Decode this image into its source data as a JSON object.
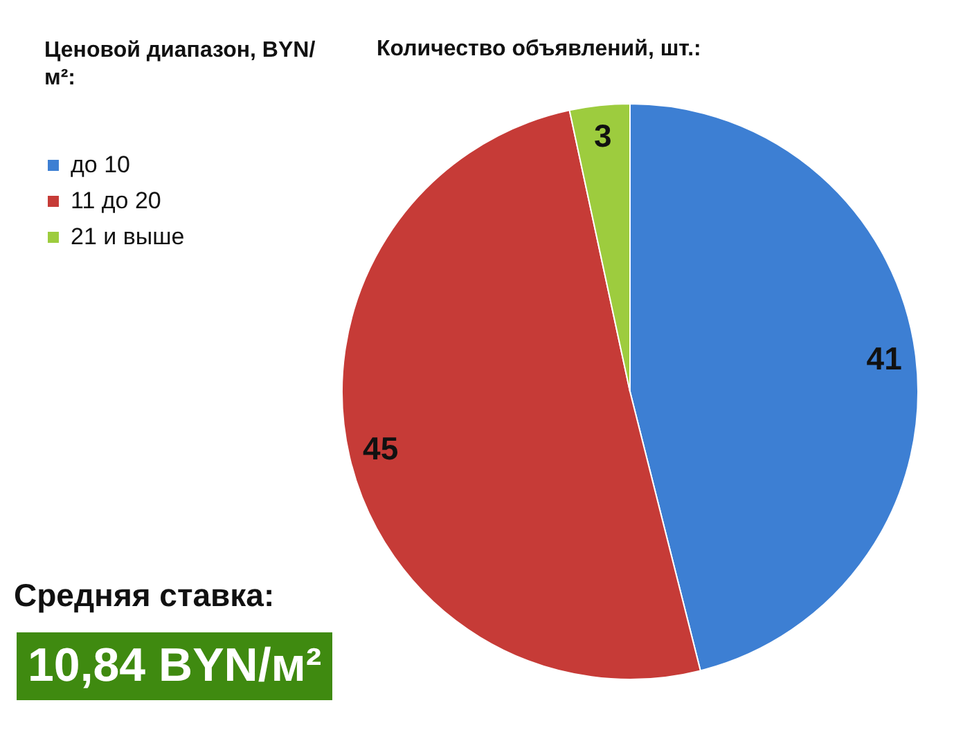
{
  "chart_data": {
    "type": "pie",
    "title": "Количество объявлений, шт.:",
    "legend_title": "Ценовой диапазон, BYN/м²:",
    "categories": [
      "до 10",
      "11 до 20",
      "21 и выше"
    ],
    "values": [
      41,
      45,
      3
    ],
    "colors": [
      "#3d7fd3",
      "#c63b37",
      "#9dcc3e"
    ],
    "data_labels": true,
    "legend": "left",
    "annotations": [
      "Средняя ставка:",
      "10,84 BYN/м²"
    ]
  }
}
